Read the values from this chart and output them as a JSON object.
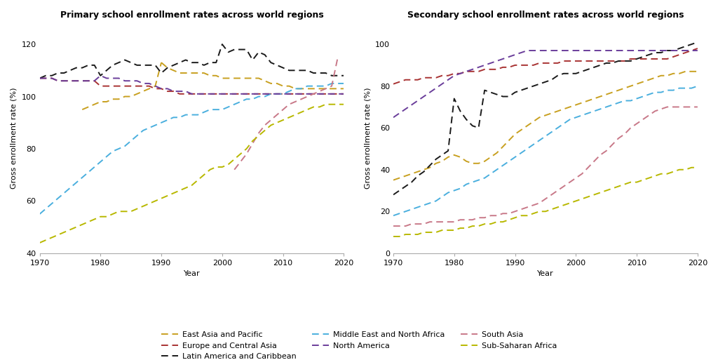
{
  "title_primary": "Primary school enrollment rates across world regions",
  "title_secondary": "Secondary school enrollment rates across world regions",
  "ylabel": "Gross enrollment rate (%)",
  "xlabel": "Year",
  "regions": [
    "East Asia and Pacific",
    "Europe and Central Asia",
    "Latin America and Caribbean",
    "Middle East and North Africa",
    "North America",
    "South Asia",
    "Sub-Saharan Africa"
  ],
  "colors": {
    "East Asia and Pacific": "#c8a020",
    "Europe and Central Asia": "#a83232",
    "Latin America and Caribbean": "#1a1a1a",
    "Middle East and North Africa": "#4aafde",
    "North America": "#6a3d9a",
    "South Asia": "#c87888",
    "Sub-Saharan Africa": "#b8b800"
  },
  "primary": {
    "years": [
      1970,
      1971,
      1972,
      1973,
      1974,
      1975,
      1976,
      1977,
      1978,
      1979,
      1980,
      1981,
      1982,
      1983,
      1984,
      1985,
      1986,
      1987,
      1988,
      1989,
      1990,
      1991,
      1992,
      1993,
      1994,
      1995,
      1996,
      1997,
      1998,
      1999,
      2000,
      2001,
      2002,
      2003,
      2004,
      2005,
      2006,
      2007,
      2008,
      2009,
      2010,
      2011,
      2012,
      2013,
      2014,
      2015,
      2016,
      2017,
      2018,
      2019,
      2020
    ],
    "East Asia and Pacific": [
      null,
      null,
      null,
      null,
      null,
      null,
      null,
      null,
      null,
      null,
      null,
      null,
      null,
      null,
      null,
      null,
      null,
      null,
      null,
      null,
      113,
      111,
      110,
      109,
      109,
      109,
      109,
      109,
      108,
      108,
      107,
      107,
      107,
      107,
      107,
      107,
      107,
      106,
      105,
      105,
      104,
      104,
      103,
      103,
      103,
      103,
      103,
      103,
      103,
      103,
      103
    ],
    "Europe and Central Asia": [
      107,
      107,
      107,
      106,
      106,
      106,
      106,
      106,
      106,
      106,
      104,
      104,
      104,
      104,
      104,
      104,
      104,
      104,
      104,
      103,
      103,
      102,
      102,
      101,
      101,
      101,
      101,
      101,
      101,
      101,
      101,
      101,
      101,
      101,
      101,
      101,
      101,
      101,
      101,
      101,
      101,
      101,
      101,
      101,
      101,
      101,
      101,
      101,
      101,
      101,
      101
    ],
    "Latin America and Caribbean": [
      107,
      108,
      108,
      109,
      109,
      110,
      111,
      111,
      112,
      112,
      108,
      110,
      112,
      113,
      114,
      113,
      112,
      112,
      112,
      112,
      109,
      111,
      112,
      113,
      114,
      113,
      113,
      112,
      113,
      113,
      120,
      117,
      118,
      118,
      118,
      114,
      117,
      116,
      113,
      112,
      111,
      110,
      110,
      110,
      110,
      109,
      109,
      109,
      108,
      108,
      108
    ],
    "Middle East and North Africa": [
      55,
      57,
      59,
      61,
      63,
      65,
      67,
      69,
      71,
      73,
      75,
      77,
      79,
      80,
      81,
      83,
      85,
      87,
      88,
      89,
      90,
      91,
      92,
      92,
      93,
      93,
      93,
      94,
      95,
      95,
      95,
      96,
      97,
      98,
      99,
      99,
      100,
      100,
      101,
      101,
      101,
      102,
      103,
      103,
      104,
      104,
      104,
      104,
      105,
      105,
      105
    ],
    "North America": [
      107,
      107,
      107,
      106,
      106,
      106,
      106,
      106,
      106,
      106,
      108,
      107,
      107,
      107,
      106,
      106,
      106,
      105,
      105,
      104,
      103,
      103,
      102,
      102,
      102,
      101,
      101,
      101,
      101,
      101,
      101,
      101,
      101,
      101,
      101,
      101,
      101,
      101,
      101,
      101,
      101,
      101,
      101,
      101,
      101,
      101,
      101,
      101,
      101,
      101,
      101
    ],
    "South Asia": [
      null,
      null,
      null,
      null,
      null,
      null,
      null,
      null,
      null,
      null,
      null,
      null,
      null,
      null,
      null,
      null,
      null,
      null,
      null,
      null,
      null,
      null,
      null,
      null,
      null,
      null,
      null,
      null,
      null,
      null,
      null,
      null,
      null,
      null,
      null,
      null,
      null,
      null,
      null,
      null,
      null,
      null,
      null,
      null,
      null,
      null,
      null,
      null,
      null,
      null,
      null
    ],
    "Sub-Saharan Africa": [
      44,
      45,
      46,
      47,
      48,
      49,
      50,
      51,
      52,
      53,
      54,
      54,
      55,
      56,
      56,
      56,
      57,
      58,
      59,
      60,
      61,
      62,
      63,
      64,
      65,
      66,
      68,
      70,
      72,
      73,
      73,
      74,
      76,
      78,
      80,
      83,
      85,
      87,
      89,
      90,
      91,
      92,
      93,
      94,
      95,
      96,
      96,
      97,
      97,
      97,
      97
    ]
  },
  "primary_south_asia": {
    "years": [
      2002,
      2003,
      2004,
      2005,
      2006,
      2007,
      2008,
      2009,
      2010,
      2011,
      2012,
      2013,
      2014,
      2015,
      2016,
      2017,
      2018,
      2019
    ],
    "vals": [
      72,
      75,
      78,
      82,
      86,
      89,
      91,
      93,
      95,
      97,
      98,
      99,
      100,
      101,
      102,
      103,
      104,
      115
    ]
  },
  "primary_eap_early": {
    "years": [
      1977,
      1978,
      1979,
      1980,
      1981,
      1982,
      1983,
      1984,
      1985,
      1986,
      1987,
      1988,
      1989,
      1990
    ],
    "vals": [
      95,
      96,
      97,
      98,
      98,
      99,
      99,
      100,
      100,
      101,
      102,
      103,
      104,
      113
    ]
  },
  "secondary": {
    "years": [
      1970,
      1971,
      1972,
      1973,
      1974,
      1975,
      1976,
      1977,
      1978,
      1979,
      1980,
      1981,
      1982,
      1983,
      1984,
      1985,
      1986,
      1987,
      1988,
      1989,
      1990,
      1991,
      1992,
      1993,
      1994,
      1995,
      1996,
      1997,
      1998,
      1999,
      2000,
      2001,
      2002,
      2003,
      2004,
      2005,
      2006,
      2007,
      2008,
      2009,
      2010,
      2011,
      2012,
      2013,
      2014,
      2015,
      2016,
      2017,
      2018,
      2019,
      2020
    ],
    "East Asia and Pacific": [
      35,
      36,
      37,
      38,
      39,
      40,
      41,
      43,
      44,
      46,
      47,
      46,
      44,
      43,
      43,
      44,
      46,
      48,
      51,
      54,
      57,
      59,
      61,
      63,
      65,
      66,
      67,
      68,
      69,
      70,
      71,
      72,
      73,
      74,
      75,
      76,
      77,
      78,
      79,
      80,
      81,
      82,
      83,
      84,
      85,
      85,
      86,
      86,
      87,
      87,
      87
    ],
    "Europe and Central Asia": [
      81,
      82,
      83,
      83,
      83,
      84,
      84,
      84,
      85,
      85,
      86,
      86,
      87,
      87,
      87,
      88,
      88,
      88,
      89,
      89,
      90,
      90,
      90,
      90,
      91,
      91,
      91,
      91,
      92,
      92,
      92,
      92,
      92,
      92,
      92,
      92,
      92,
      92,
      92,
      93,
      93,
      93,
      93,
      93,
      93,
      93,
      94,
      95,
      96,
      97,
      98
    ],
    "Latin America and Caribbean": [
      28,
      30,
      32,
      34,
      37,
      39,
      42,
      45,
      47,
      49,
      74,
      68,
      64,
      61,
      60,
      78,
      77,
      76,
      75,
      75,
      77,
      78,
      79,
      80,
      81,
      82,
      83,
      85,
      86,
      86,
      86,
      87,
      88,
      89,
      90,
      91,
      91,
      92,
      92,
      92,
      93,
      94,
      95,
      96,
      96,
      97,
      97,
      98,
      99,
      100,
      101
    ],
    "Middle East and North Africa": [
      18,
      19,
      20,
      21,
      22,
      23,
      24,
      25,
      27,
      29,
      30,
      31,
      33,
      34,
      35,
      36,
      38,
      40,
      42,
      44,
      46,
      48,
      50,
      52,
      54,
      56,
      58,
      60,
      62,
      64,
      65,
      66,
      67,
      68,
      69,
      70,
      71,
      72,
      73,
      73,
      74,
      75,
      76,
      77,
      77,
      78,
      78,
      79,
      79,
      79,
      80
    ],
    "North America": [
      65,
      67,
      69,
      71,
      73,
      75,
      77,
      79,
      81,
      83,
      85,
      86,
      87,
      88,
      89,
      90,
      91,
      92,
      93,
      94,
      95,
      96,
      97,
      97,
      97,
      97,
      97,
      97,
      97,
      97,
      97,
      97,
      97,
      97,
      97,
      97,
      97,
      97,
      97,
      97,
      97,
      97,
      97,
      97,
      97,
      97,
      97,
      97,
      97,
      97,
      97
    ],
    "South Asia": [
      13,
      13,
      13,
      14,
      14,
      14,
      15,
      15,
      15,
      15,
      15,
      16,
      16,
      16,
      17,
      17,
      18,
      18,
      19,
      19,
      20,
      21,
      22,
      23,
      24,
      26,
      28,
      30,
      32,
      34,
      36,
      38,
      41,
      44,
      47,
      49,
      52,
      55,
      57,
      60,
      62,
      64,
      66,
      68,
      69,
      70,
      70,
      70,
      70,
      70,
      70
    ],
    "Sub-Saharan Africa": [
      8,
      8,
      9,
      9,
      9,
      10,
      10,
      10,
      11,
      11,
      11,
      12,
      12,
      13,
      13,
      14,
      14,
      15,
      15,
      16,
      17,
      18,
      18,
      19,
      20,
      20,
      21,
      22,
      23,
      24,
      25,
      26,
      27,
      28,
      29,
      30,
      31,
      32,
      33,
      34,
      34,
      35,
      36,
      37,
      38,
      38,
      39,
      40,
      40,
      41,
      41
    ]
  },
  "primary_ylim": [
    40,
    128
  ],
  "primary_yticks": [
    40,
    60,
    80,
    100,
    120
  ],
  "secondary_ylim": [
    0,
    110
  ],
  "secondary_yticks": [
    0,
    20,
    40,
    60,
    80,
    100
  ],
  "background_color": "#ffffff"
}
